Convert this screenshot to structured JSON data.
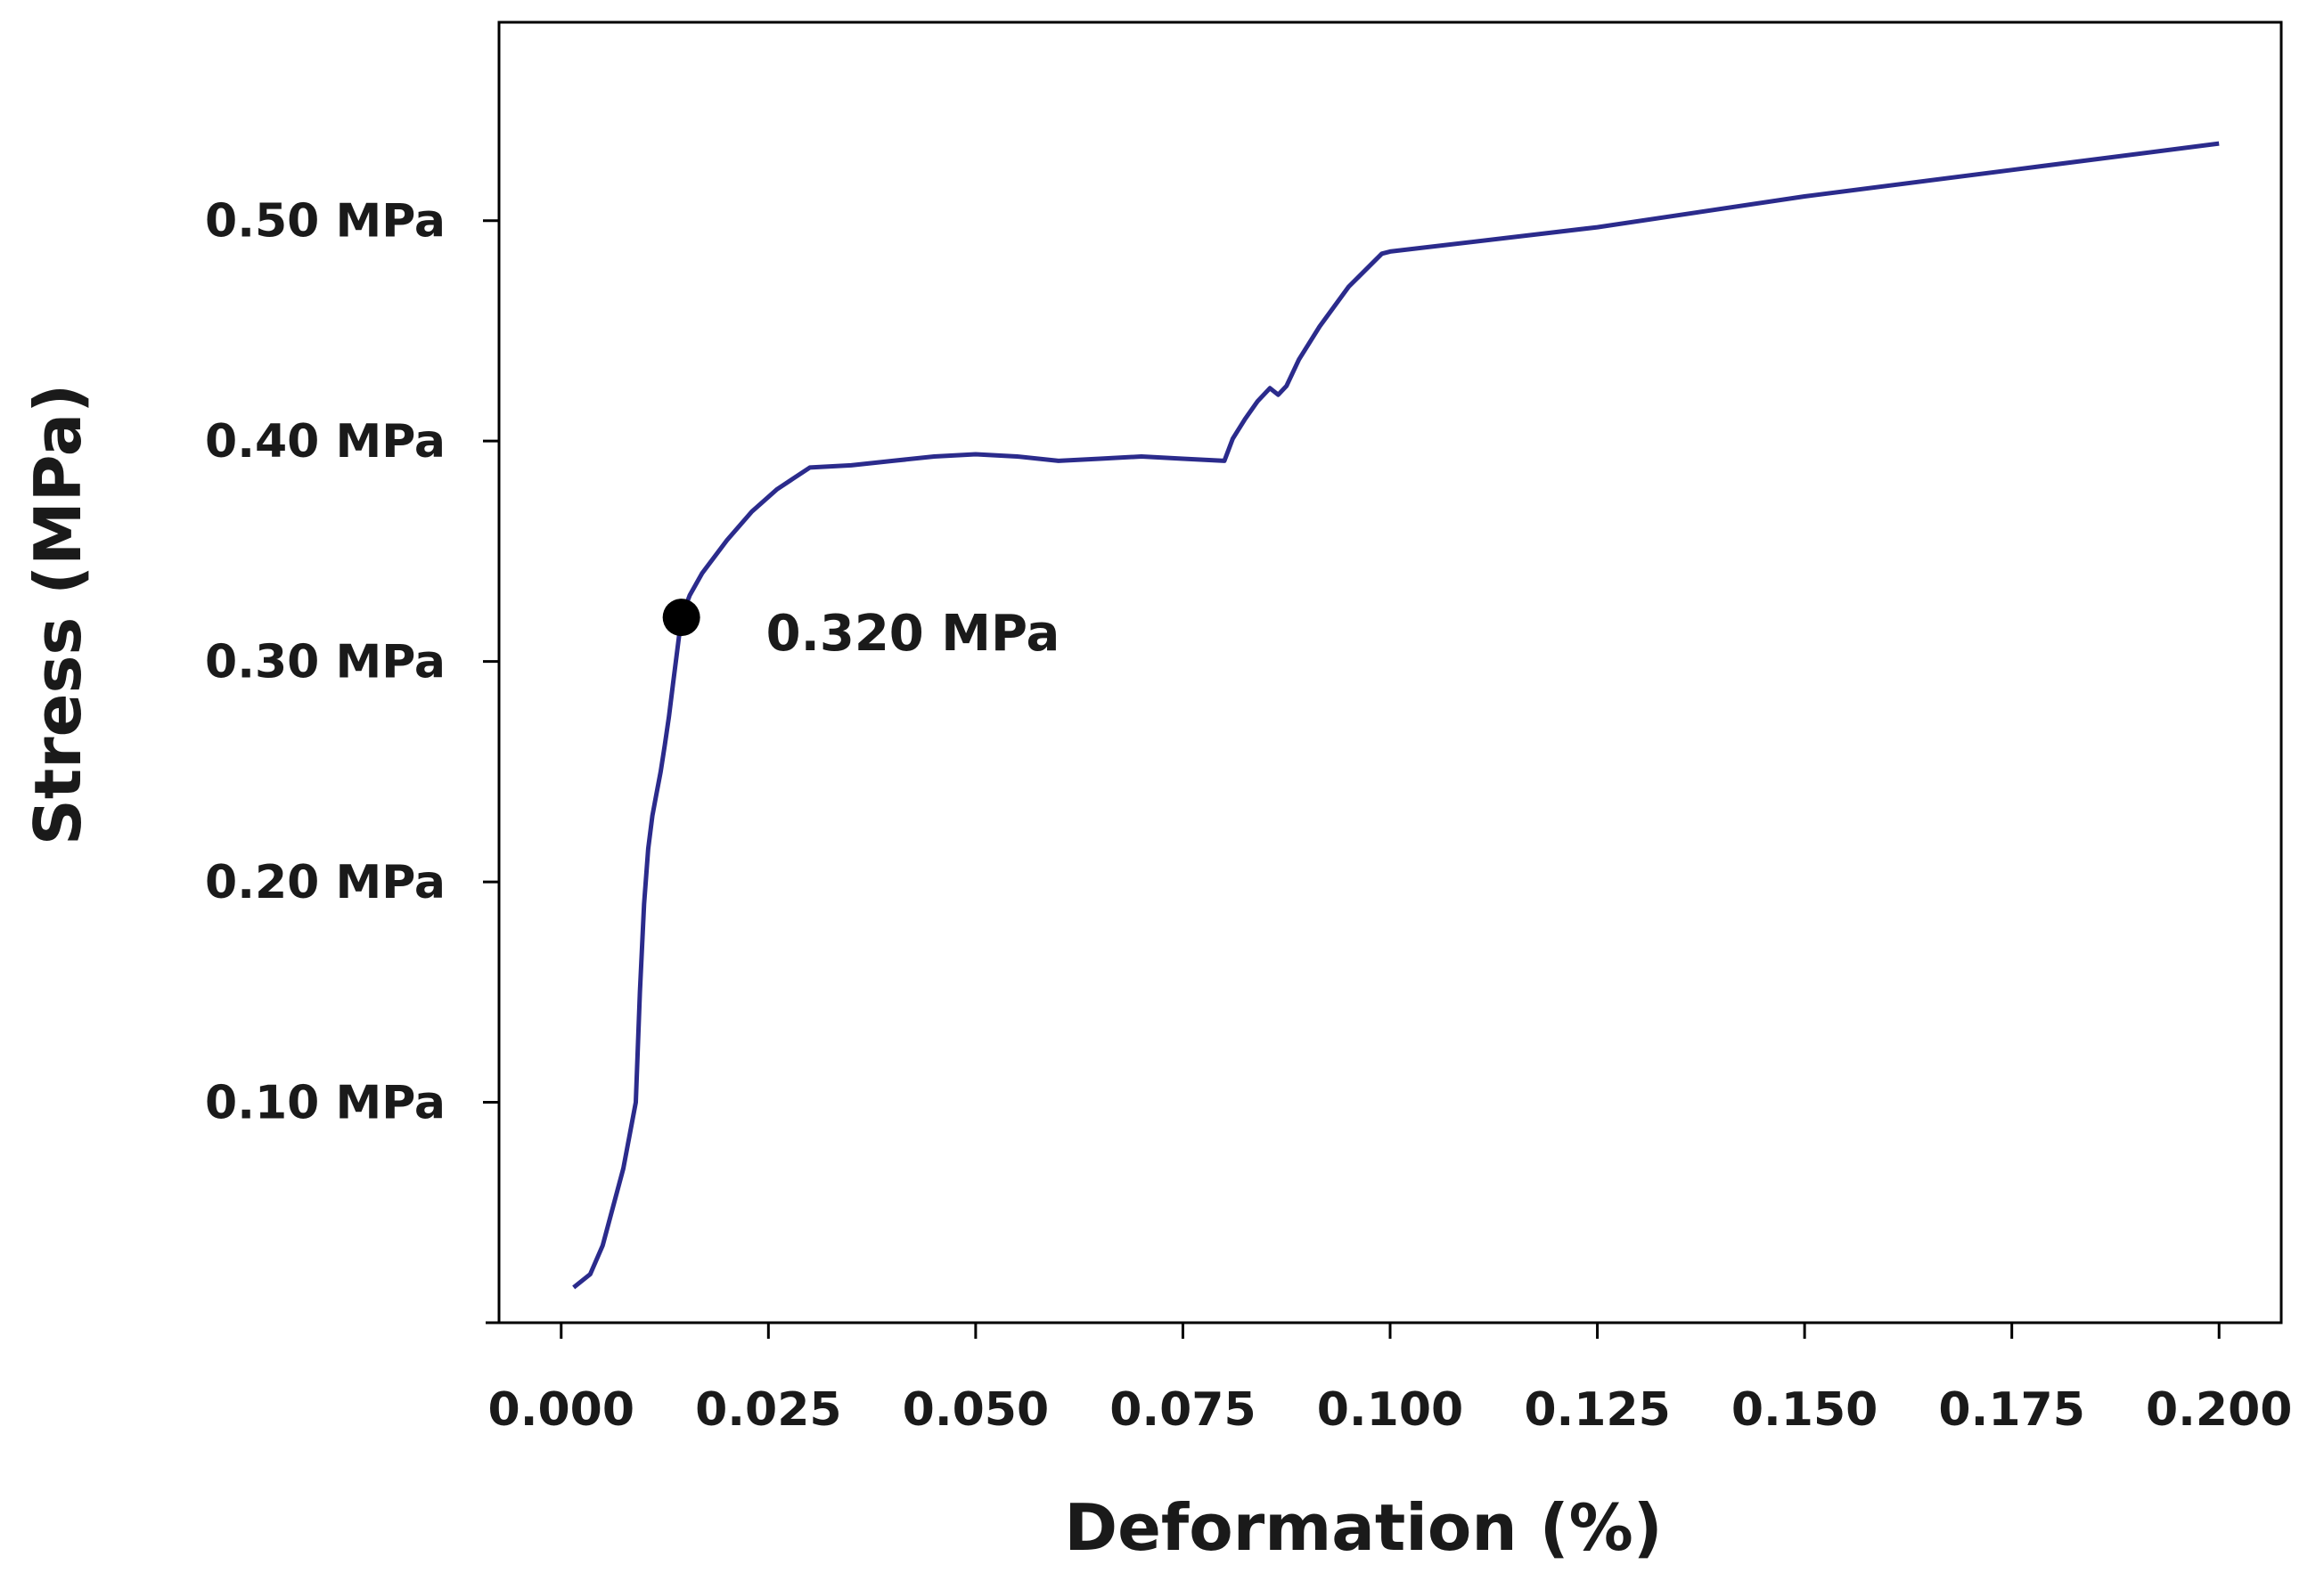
{
  "chart_data": {
    "type": "line",
    "title": "",
    "xlabel": "Deformation (%)",
    "ylabel": "Stress (MPa)",
    "xlim": [
      -0.0075,
      0.2075
    ],
    "ylim": [
      0.0,
      0.59
    ],
    "x_ticks": [
      {
        "value": 0.0,
        "label": "0.000"
      },
      {
        "value": 0.025,
        "label": "0.025"
      },
      {
        "value": 0.05,
        "label": "0.050"
      },
      {
        "value": 0.075,
        "label": "0.075"
      },
      {
        "value": 0.1,
        "label": "0.100"
      },
      {
        "value": 0.125,
        "label": "0.125"
      },
      {
        "value": 0.15,
        "label": "0.150"
      },
      {
        "value": 0.175,
        "label": "0.175"
      },
      {
        "value": 0.2,
        "label": "0.200"
      }
    ],
    "y_ticks": [
      {
        "value": 0.1,
        "label": "0.10 MPa"
      },
      {
        "value": 0.2,
        "label": "0.20 MPa"
      },
      {
        "value": 0.3,
        "label": "0.30 MPa"
      },
      {
        "value": 0.4,
        "label": "0.40 MPa"
      },
      {
        "value": 0.5,
        "label": "0.50 MPa"
      }
    ],
    "grid": false,
    "series": [
      {
        "color": "#2b2b8c",
        "x": [
          0.0015,
          0.0035,
          0.005,
          0.0075,
          0.009,
          0.0095,
          0.01,
          0.0105,
          0.011,
          0.0115,
          0.012,
          0.0125,
          0.013,
          0.0135,
          0.014,
          0.0145,
          0.0155,
          0.017,
          0.02,
          0.023,
          0.026,
          0.028,
          0.03,
          0.035,
          0.04,
          0.045,
          0.05,
          0.055,
          0.06,
          0.065,
          0.07,
          0.075,
          0.08,
          0.081,
          0.0825,
          0.084,
          0.0855,
          0.0865,
          0.0875,
          0.089,
          0.0915,
          0.095,
          0.099,
          0.1,
          0.125,
          0.15,
          0.175,
          0.2
        ],
        "y": [
          0.016,
          0.022,
          0.035,
          0.07,
          0.1,
          0.15,
          0.19,
          0.215,
          0.23,
          0.24,
          0.25,
          0.262,
          0.275,
          0.29,
          0.305,
          0.32,
          0.33,
          0.34,
          0.355,
          0.368,
          0.378,
          0.383,
          0.388,
          0.389,
          0.391,
          0.393,
          0.394,
          0.393,
          0.391,
          0.392,
          0.393,
          0.392,
          0.391,
          0.401,
          0.41,
          0.418,
          0.424,
          0.421,
          0.425,
          0.437,
          0.452,
          0.47,
          0.485,
          0.486,
          0.497,
          0.511,
          0.523,
          0.535
        ]
      }
    ],
    "annotations": [
      {
        "x": 0.0145,
        "y": 0.32,
        "label": "0.320 MPa",
        "marker": "circle",
        "color": "#000000"
      }
    ]
  }
}
